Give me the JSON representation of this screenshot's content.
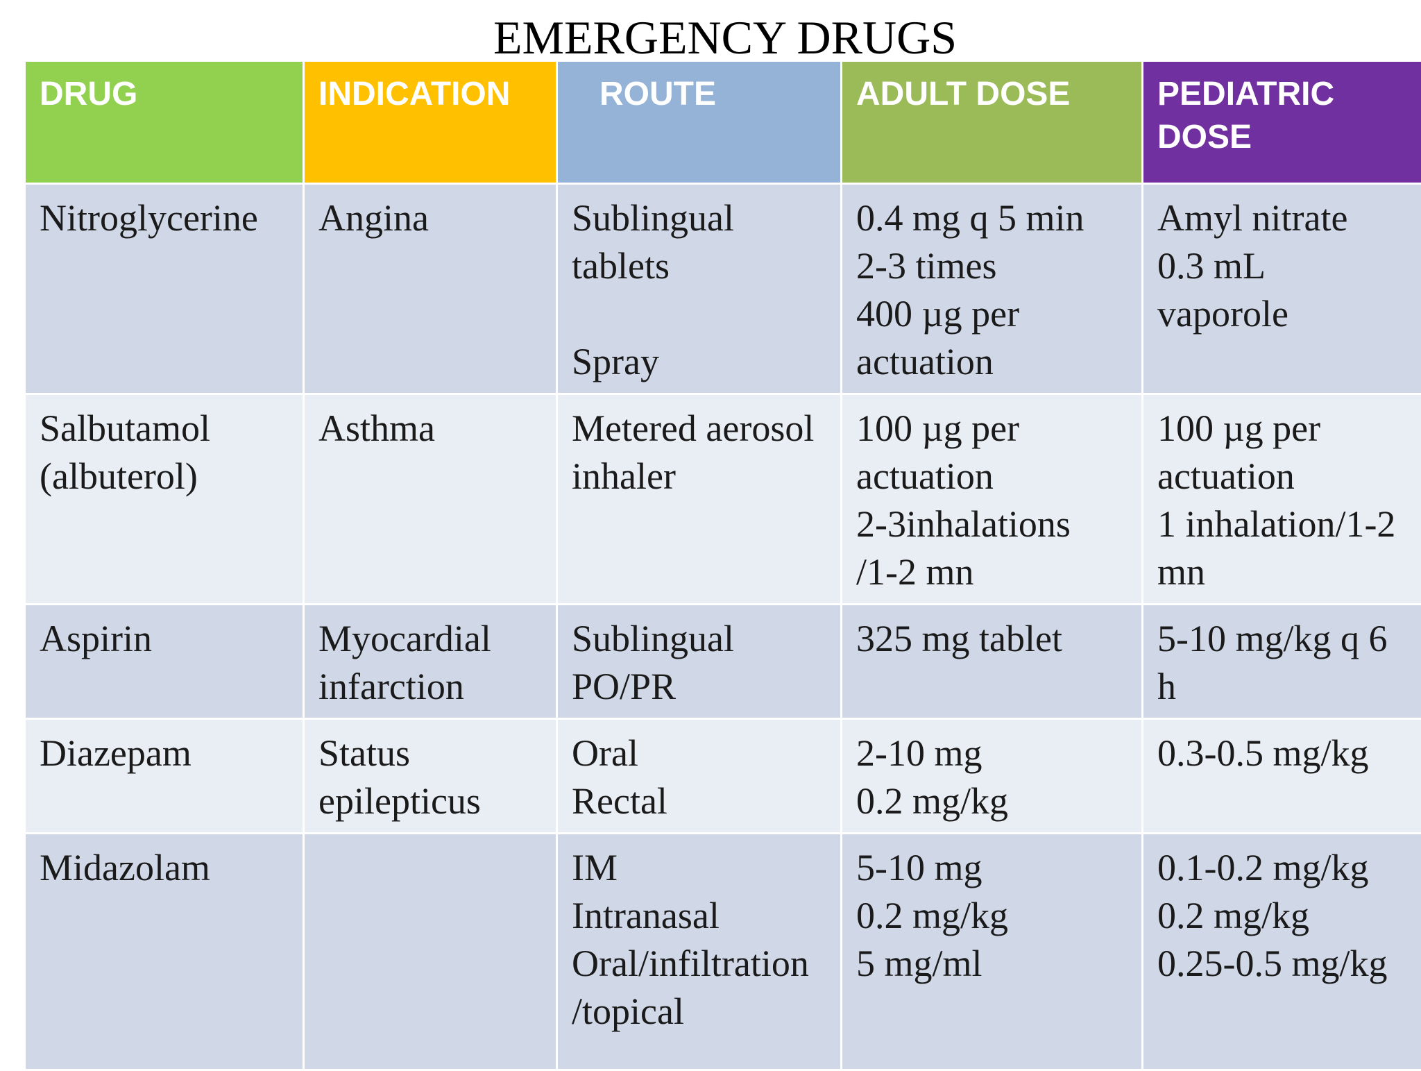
{
  "title": "EMERGENCY DRUGS",
  "colors": {
    "drug_header": "#92d050",
    "indication_header": "#ffc000",
    "route_header": "#95b3d7",
    "adult_dose_header": "#9bbb59",
    "pediatric_dose_header": "#7030a0",
    "row_dark": "#d0d8e8",
    "row_light": "#e9edf4"
  },
  "headers": {
    "drug": "DRUG",
    "indication": "INDICATION",
    "route": "ROUTE",
    "adult_dose": "ADULT DOSE",
    "pediatric_dose": "PEDIATRIC DOSE"
  },
  "rows": [
    {
      "drug": "Nitroglycerine",
      "indication": "Angina",
      "route": "Sublingual\ntablets\n\nSpray",
      "adult_dose": "0.4 mg q 5 min\n2-3 times\n400 µg per\nactuation",
      "pediatric_dose": "Amyl nitrate\n0.3 mL\nvaporole"
    },
    {
      "drug": "Salbutamol\n(albuterol)",
      "indication": "Asthma",
      "route": "Metered aerosol\ninhaler",
      "adult_dose": "100 µg per\nactuation\n2-3inhalations\n/1-2 mn",
      "pediatric_dose": "100 µg per\nactuation\n1 inhalation/1-2\nmn"
    },
    {
      "drug": "Aspirin",
      "indication": "Myocardial\ninfarction",
      "route": "Sublingual\nPO/PR",
      "adult_dose": "325 mg tablet",
      "pediatric_dose": "5-10 mg/kg q 6\nh"
    },
    {
      "drug": "Diazepam",
      "indication": "Status\nepilepticus",
      "route": "Oral\nRectal",
      "adult_dose": "2-10 mg\n0.2 mg/kg",
      "pediatric_dose": "0.3-0.5 mg/kg"
    },
    {
      "drug": "Midazolam",
      "indication": "",
      "route": "IM\nIntranasal\nOral/infiltration\n/topical",
      "adult_dose": "5-10 mg\n0.2 mg/kg\n5 mg/ml",
      "pediatric_dose": "0.1-0.2 mg/kg\n0.2 mg/kg\n0.25-0.5 mg/kg"
    }
  ]
}
